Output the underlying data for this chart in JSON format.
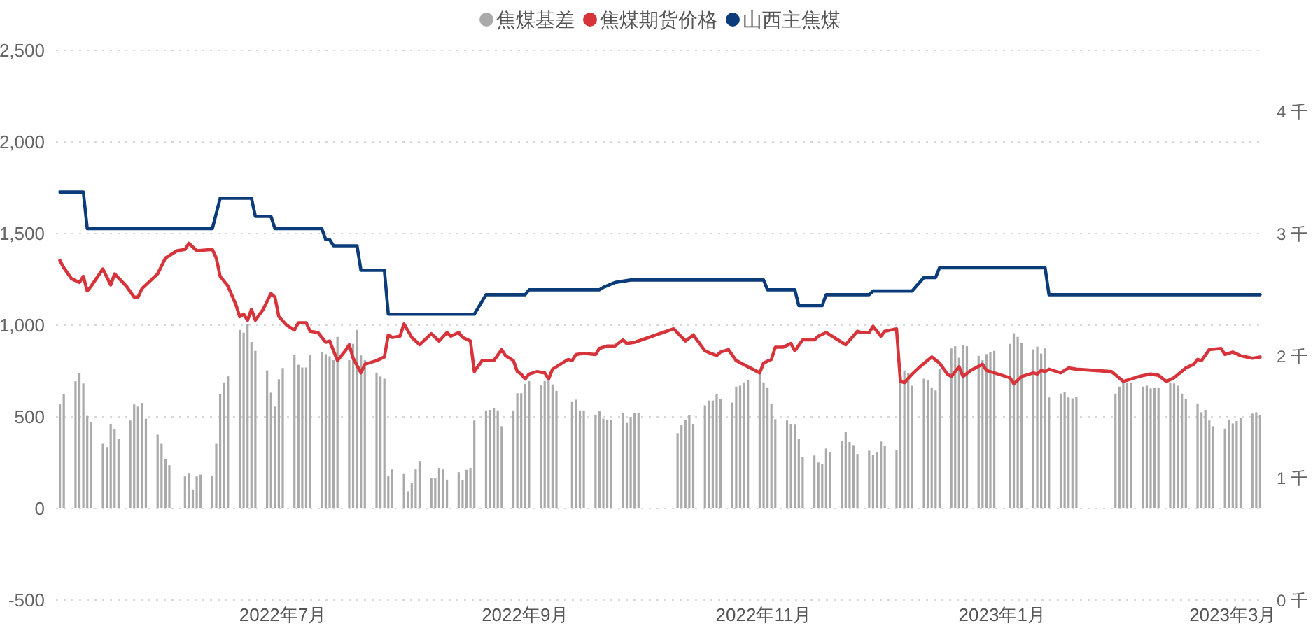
{
  "chart_data": {
    "type": "bar",
    "legend": "top",
    "grid": "y",
    "xlim": [
      "2022-05-04",
      "2023-03-09"
    ],
    "xticks": [
      {
        "value": "2022-07-01",
        "label": "2022年7月"
      },
      {
        "value": "2022-09-01",
        "label": "2022年9月"
      },
      {
        "value": "2022-11-01",
        "label": "2022年11月"
      },
      {
        "value": "2023-01-01",
        "label": "2023年1月"
      },
      {
        "value": "2023-03-01",
        "label": "2023年3月"
      }
    ],
    "ylim": [
      -500,
      2500
    ],
    "yticks": [
      -500,
      0,
      500,
      {
        "value": 1000,
        "label": "1,000"
      },
      {
        "value": 1500,
        "label": "1,500"
      },
      {
        "value": 2000,
        "label": "2,000"
      },
      {
        "value": 2500,
        "label": "2,500"
      }
    ],
    "y2lim": [
      0,
      4.5
    ],
    "y2ticks": [
      {
        "value": 0,
        "label": "0 千"
      },
      {
        "value": 1,
        "label": "1 千"
      },
      {
        "value": 2,
        "label": "2 千"
      },
      {
        "value": 3,
        "label": "3 千"
      },
      {
        "value": 4,
        "label": "4 千"
      }
    ],
    "series": [
      {
        "name": "焦煤基差",
        "color": "#aaaaaa",
        "x": [
          "2022-05-05",
          "2022-05-06",
          "2022-05-09",
          "2022-05-10",
          "2022-05-11",
          "2022-05-12",
          "2022-05-13",
          "2022-05-16",
          "2022-05-17",
          "2022-05-18",
          "2022-05-19",
          "2022-05-20",
          "2022-05-23",
          "2022-05-24",
          "2022-05-25",
          "2022-05-26",
          "2022-05-27",
          "2022-05-30",
          "2022-05-31",
          "2022-06-01",
          "2022-06-02",
          "2022-06-06",
          "2022-06-07",
          "2022-06-08",
          "2022-06-09",
          "2022-06-10",
          "2022-06-13",
          "2022-06-14",
          "2022-06-15",
          "2022-06-16",
          "2022-06-17",
          "2022-06-20",
          "2022-06-21",
          "2022-06-22",
          "2022-06-23",
          "2022-06-24",
          "2022-06-27",
          "2022-06-28",
          "2022-06-29",
          "2022-06-30",
          "2022-07-01",
          "2022-07-04",
          "2022-07-05",
          "2022-07-06",
          "2022-07-07",
          "2022-07-08",
          "2022-07-11",
          "2022-07-12",
          "2022-07-13",
          "2022-07-14",
          "2022-07-15",
          "2022-07-18",
          "2022-07-19",
          "2022-07-20",
          "2022-07-21",
          "2022-07-22",
          "2022-07-25",
          "2022-07-26",
          "2022-07-27",
          "2022-07-28",
          "2022-07-29",
          "2022-08-01",
          "2022-08-02",
          "2022-08-03",
          "2022-08-04",
          "2022-08-05",
          "2022-08-08",
          "2022-08-09",
          "2022-08-10",
          "2022-08-11",
          "2022-08-12",
          "2022-08-15",
          "2022-08-16",
          "2022-08-17",
          "2022-08-18",
          "2022-08-19",
          "2022-08-22",
          "2022-08-23",
          "2022-08-24",
          "2022-08-25",
          "2022-08-26",
          "2022-08-29",
          "2022-08-30",
          "2022-08-31",
          "2022-09-01",
          "2022-09-02",
          "2022-09-05",
          "2022-09-06",
          "2022-09-07",
          "2022-09-08",
          "2022-09-09",
          "2022-09-13",
          "2022-09-14",
          "2022-09-15",
          "2022-09-16",
          "2022-09-19",
          "2022-09-20",
          "2022-09-21",
          "2022-09-22",
          "2022-09-23",
          "2022-09-26",
          "2022-09-27",
          "2022-09-28",
          "2022-09-29",
          "2022-09-30",
          "2022-10-10",
          "2022-10-11",
          "2022-10-12",
          "2022-10-13",
          "2022-10-14",
          "2022-10-17",
          "2022-10-18",
          "2022-10-19",
          "2022-10-20",
          "2022-10-21",
          "2022-10-24",
          "2022-10-25",
          "2022-10-26",
          "2022-10-27",
          "2022-10-28",
          "2022-10-31",
          "2022-11-01",
          "2022-11-02",
          "2022-11-03",
          "2022-11-04",
          "2022-11-07",
          "2022-11-08",
          "2022-11-09",
          "2022-11-10",
          "2022-11-11",
          "2022-11-14",
          "2022-11-15",
          "2022-11-16",
          "2022-11-17",
          "2022-11-18",
          "2022-11-21",
          "2022-11-22",
          "2022-11-23",
          "2022-11-24",
          "2022-11-25",
          "2022-11-28",
          "2022-11-29",
          "2022-11-30",
          "2022-12-01",
          "2022-12-02",
          "2022-12-05",
          "2022-12-06",
          "2022-12-07",
          "2022-12-08",
          "2022-12-09",
          "2022-12-12",
          "2022-12-13",
          "2022-12-14",
          "2022-12-15",
          "2022-12-16",
          "2022-12-19",
          "2022-12-20",
          "2022-12-21",
          "2022-12-22",
          "2022-12-23",
          "2022-12-26",
          "2022-12-27",
          "2022-12-28",
          "2022-12-29",
          "2022-12-30",
          "2023-01-03",
          "2023-01-04",
          "2023-01-05",
          "2023-01-06",
          "2023-01-09",
          "2023-01-10",
          "2023-01-11",
          "2023-01-12",
          "2023-01-13",
          "2023-01-16",
          "2023-01-17",
          "2023-01-18",
          "2023-01-19",
          "2023-01-20",
          "2023-01-30",
          "2023-01-31",
          "2023-02-01",
          "2023-02-02",
          "2023-02-03",
          "2023-02-06",
          "2023-02-07",
          "2023-02-08",
          "2023-02-09",
          "2023-02-10",
          "2023-02-13",
          "2023-02-14",
          "2023-02-15",
          "2023-02-16",
          "2023-02-17",
          "2023-02-20",
          "2023-02-21",
          "2023-02-22",
          "2023-02-23",
          "2023-02-24",
          "2023-02-27",
          "2023-02-28",
          "2023-03-01",
          "2023-03-02",
          "2023-03-03",
          "2023-03-06",
          "2023-03-07",
          "2023-03-08"
        ],
        "values": [
          568,
          622,
          694,
          738,
          682,
          505,
          472,
          353,
          335,
          462,
          434,
          378,
          480,
          568,
          556,
          576,
          490,
          403,
          353,
          269,
          236,
          175,
          190,
          104,
          175,
          185,
          180,
          353,
          624,
          688,
          721,
          974,
          959,
          1007,
          908,
          860,
          753,
          632,
          556,
          705,
          766,
          840,
          784,
          769,
          769,
          840,
          852,
          842,
          830,
          809,
          936,
          809,
          898,
          974,
          835,
          809,
          741,
          720,
          708,
          175,
          213,
          188,
          94,
          137,
          213,
          259,
          167,
          167,
          221,
          213,
          157,
          198,
          155,
          211,
          221,
          480,
          535,
          538,
          548,
          535,
          449,
          535,
          629,
          629,
          680,
          695,
          672,
          695,
          703,
          677,
          642,
          581,
          594,
          535,
          535,
          512,
          530,
          490,
          485,
          485,
          523,
          467,
          500,
          523,
          523,
          411,
          454,
          485,
          510,
          459,
          563,
          589,
          589,
          622,
          599,
          578,
          665,
          670,
          688,
          703,
          741,
          688,
          657,
          573,
          487,
          480,
          459,
          457,
          378,
          282,
          289,
          251,
          244,
          327,
          307,
          370,
          416,
          363,
          342,
          297,
          315,
          294,
          307,
          365,
          340,
          317,
          759,
          753,
          738,
          670,
          708,
          700,
          657,
          644,
          759,
          873,
          885,
          822,
          890,
          885,
          833,
          809,
          842,
          855,
          860,
          898,
          956,
          936,
          903,
          868,
          883,
          845,
          873,
          606,
          627,
          634,
          606,
          601,
          611,
          627,
          665,
          688,
          688,
          688,
          665,
          670,
          655,
          657,
          657,
          688,
          682,
          670,
          627,
          599,
          573,
          525,
          538,
          480,
          449,
          436,
          485,
          464,
          477,
          495,
          518,
          525,
          512
        ]
      },
      {
        "name": "焦煤期货价格",
        "type": "line",
        "axis": "y2",
        "color": "#d6333a",
        "x": [
          "2022-05-05",
          "2022-05-06",
          "2022-05-08",
          "2022-05-10",
          "2022-05-11",
          "2022-05-12",
          "2022-05-13",
          "2022-05-16",
          "2022-05-18",
          "2022-05-19",
          "2022-05-22",
          "2022-05-24",
          "2022-05-25",
          "2022-05-26",
          "2022-05-30",
          "2022-06-01",
          "2022-06-04",
          "2022-06-06",
          "2022-06-07",
          "2022-06-09",
          "2022-06-13",
          "2022-06-14",
          "2022-06-15",
          "2022-06-17",
          "2022-06-19",
          "2022-06-20",
          "2022-06-21",
          "2022-06-22",
          "2022-06-23",
          "2022-06-24",
          "2022-06-26",
          "2022-06-28",
          "2022-06-29",
          "2022-06-30",
          "2022-07-02",
          "2022-07-04",
          "2022-07-05",
          "2022-07-07",
          "2022-07-08",
          "2022-07-10",
          "2022-07-12",
          "2022-07-13",
          "2022-07-15",
          "2022-07-17",
          "2022-07-18",
          "2022-07-19",
          "2022-07-21",
          "2022-07-22",
          "2022-07-25",
          "2022-07-27",
          "2022-07-28",
          "2022-07-29",
          "2022-07-31",
          "2022-08-01",
          "2022-08-03",
          "2022-08-05",
          "2022-08-08",
          "2022-08-10",
          "2022-08-12",
          "2022-08-13",
          "2022-08-15",
          "2022-08-16",
          "2022-08-18",
          "2022-08-19",
          "2022-08-21",
          "2022-08-23",
          "2022-08-24",
          "2022-08-26",
          "2022-08-27",
          "2022-08-29",
          "2022-08-30",
          "2022-08-31",
          "2022-09-01",
          "2022-09-02",
          "2022-09-04",
          "2022-09-06",
          "2022-09-07",
          "2022-09-08",
          "2022-09-10",
          "2022-09-12",
          "2022-09-13",
          "2022-09-14",
          "2022-09-16",
          "2022-09-19",
          "2022-09-20",
          "2022-09-22",
          "2022-09-24",
          "2022-09-26",
          "2022-09-27",
          "2022-09-29",
          "2022-10-09",
          "2022-10-12",
          "2022-10-14",
          "2022-10-17",
          "2022-10-20",
          "2022-10-21",
          "2022-10-23",
          "2022-10-25",
          "2022-10-31",
          "2022-11-01",
          "2022-11-03",
          "2022-11-04",
          "2022-11-06",
          "2022-11-08",
          "2022-11-09",
          "2022-11-11",
          "2022-11-14",
          "2022-11-15",
          "2022-11-17",
          "2022-11-20",
          "2022-11-22",
          "2022-11-25",
          "2022-11-26",
          "2022-11-28",
          "2022-11-29",
          "2022-12-01",
          "2022-12-02",
          "2022-12-05",
          "2022-12-06",
          "2022-12-07",
          "2022-12-09",
          "2022-12-11",
          "2022-12-14",
          "2022-12-16",
          "2022-12-18",
          "2022-12-19",
          "2022-12-21",
          "2022-12-22",
          "2022-12-24",
          "2022-12-27",
          "2022-12-28",
          "2022-12-30",
          "2023-01-03",
          "2023-01-04",
          "2023-01-06",
          "2023-01-09",
          "2023-01-10",
          "2023-01-11",
          "2023-01-12",
          "2023-01-13",
          "2023-01-16",
          "2023-01-18",
          "2023-01-20",
          "2023-01-29",
          "2023-02-01",
          "2023-02-05",
          "2023-02-08",
          "2023-02-10",
          "2023-02-12",
          "2023-02-14",
          "2023-02-17",
          "2023-02-19",
          "2023-02-20",
          "2023-02-21",
          "2023-02-23",
          "2023-02-26",
          "2023-02-27",
          "2023-03-01",
          "2023-03-03",
          "2023-03-06",
          "2023-03-08"
        ],
        "values": [
          2.78,
          2.72,
          2.63,
          2.6,
          2.65,
          2.53,
          2.57,
          2.71,
          2.58,
          2.67,
          2.57,
          2.48,
          2.48,
          2.55,
          2.67,
          2.8,
          2.86,
          2.87,
          2.92,
          2.86,
          2.87,
          2.8,
          2.65,
          2.57,
          2.42,
          2.32,
          2.34,
          2.29,
          2.38,
          2.29,
          2.38,
          2.51,
          2.48,
          2.32,
          2.25,
          2.21,
          2.27,
          2.27,
          2.2,
          2.19,
          2.11,
          2.12,
          1.96,
          2.04,
          2.09,
          1.98,
          1.86,
          1.93,
          1.96,
          1.99,
          2.17,
          2.15,
          2.16,
          2.26,
          2.15,
          2.09,
          2.18,
          2.12,
          2.19,
          2.16,
          2.19,
          2.15,
          2.12,
          1.87,
          1.96,
          1.96,
          1.96,
          2.05,
          2,
          1.96,
          1.87,
          1.85,
          1.81,
          1.85,
          1.87,
          1.86,
          1.81,
          1.89,
          1.93,
          1.97,
          1.96,
          2.01,
          2.02,
          2.01,
          2.06,
          2.08,
          2.08,
          2.13,
          2.1,
          2.11,
          2.22,
          2.12,
          2.17,
          2.04,
          2,
          2.03,
          2.05,
          1.96,
          1.86,
          1.94,
          1.97,
          2.07,
          2.07,
          2.1,
          2.04,
          2.13,
          2.13,
          2.16,
          2.19,
          2.13,
          2.09,
          2.2,
          2.19,
          2.19,
          2.24,
          2.16,
          2.2,
          2.22,
          1.79,
          1.78,
          1.85,
          1.91,
          1.99,
          1.94,
          1.85,
          1.83,
          1.91,
          1.83,
          1.88,
          1.93,
          1.88,
          1.86,
          1.82,
          1.77,
          1.83,
          1.86,
          1.85,
          1.88,
          1.87,
          1.89,
          1.86,
          1.9,
          1.89,
          1.87,
          1.79,
          1.83,
          1.85,
          1.84,
          1.79,
          1.82,
          1.9,
          1.93,
          1.97,
          1.96,
          2.05,
          2.06,
          2.01,
          2.03,
          2,
          1.98,
          1.99
        ]
      },
      {
        "name": "山西主焦煤",
        "type": "line",
        "axis": "y2",
        "color": "#0b3b78",
        "x": [
          "2022-05-05",
          "2022-05-11",
          "2022-05-12",
          "2022-06-13",
          "2022-06-15",
          "2022-06-23",
          "2022-06-24",
          "2022-06-28",
          "2022-06-29",
          "2022-07-11",
          "2022-07-12",
          "2022-07-13",
          "2022-07-14",
          "2022-07-20",
          "2022-07-21",
          "2022-07-27",
          "2022-07-28",
          "2022-08-19",
          "2022-08-22",
          "2022-09-01",
          "2022-09-02",
          "2022-09-20",
          "2022-09-21",
          "2022-09-24",
          "2022-09-28",
          "2022-11-01",
          "2022-11-02",
          "2022-11-09",
          "2022-11-10",
          "2022-11-16",
          "2022-11-17",
          "2022-11-28",
          "2022-11-29",
          "2022-12-09",
          "2022-12-12",
          "2022-12-15",
          "2022-12-16",
          "2023-01-12",
          "2023-01-13",
          "2023-03-08"
        ],
        "values": [
          3.34,
          3.34,
          3.04,
          3.04,
          3.29,
          3.29,
          3.14,
          3.14,
          3.04,
          3.04,
          2.95,
          2.95,
          2.9,
          2.9,
          2.7,
          2.7,
          2.34,
          2.34,
          2.5,
          2.5,
          2.54,
          2.54,
          2.56,
          2.6,
          2.62,
          2.62,
          2.54,
          2.54,
          2.41,
          2.41,
          2.5,
          2.5,
          2.53,
          2.53,
          2.64,
          2.64,
          2.72,
          2.72,
          2.5,
          2.5
        ]
      }
    ]
  }
}
